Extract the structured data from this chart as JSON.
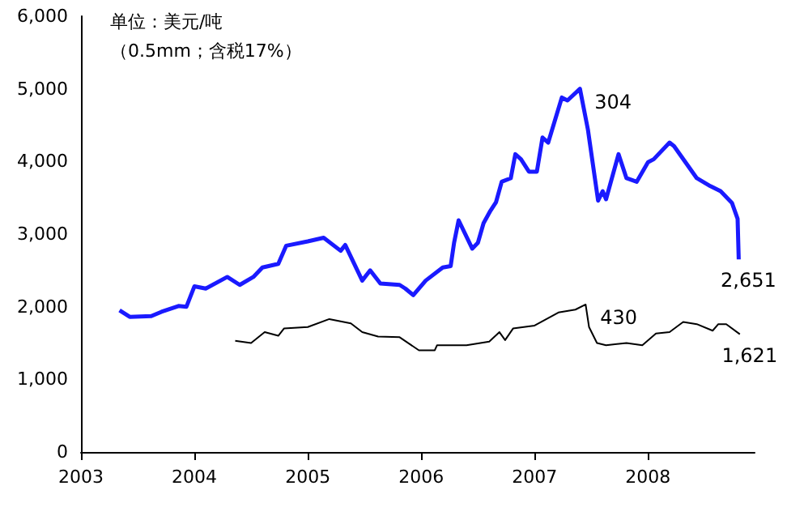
{
  "chart_data": {
    "type": "line",
    "annotations": [
      "单位：美元/吨",
      "（0.5mm；含税17%）"
    ],
    "xlim": [
      2003,
      2008.94
    ],
    "xticks": [
      2003,
      2004,
      2005,
      2006,
      2007,
      2008
    ],
    "ylim": [
      0,
      6000
    ],
    "yticks": [
      0,
      {
        "value": 1000,
        "label": "1,000"
      },
      {
        "value": 2000,
        "label": "2,000"
      },
      {
        "value": 3000,
        "label": "3,000"
      },
      {
        "value": 4000,
        "label": "4,000"
      },
      {
        "value": 5000,
        "label": "5,000"
      },
      {
        "value": 6000,
        "label": "6,000"
      }
    ],
    "grid": false,
    "legend": false,
    "marker": "none",
    "line_style": "solid",
    "series": [
      {
        "name": "304",
        "color": "#1a1aff",
        "x": [
          2003.34,
          2003.43,
          2003.62,
          2003.71,
          2003.86,
          2003.93,
          2004.0,
          2004.1,
          2004.29,
          2004.4,
          2004.52,
          2004.6,
          2004.74,
          2004.81,
          2005.0,
          2005.14,
          2005.29,
          2005.33,
          2005.48,
          2005.55,
          2005.64,
          2005.81,
          2005.86,
          2005.93,
          2006.04,
          2006.19,
          2006.26,
          2006.29,
          2006.33,
          2006.45,
          2006.5,
          2006.55,
          2006.61,
          2006.66,
          2006.71,
          2006.79,
          2006.83,
          2006.88,
          2006.95,
          2007.02,
          2007.07,
          2007.12,
          2007.24,
          2007.29,
          2007.4,
          2007.47,
          2007.56,
          2007.6,
          2007.63,
          2007.74,
          2007.81,
          2007.9,
          2008.0,
          2008.05,
          2008.19,
          2008.23,
          2008.33,
          2008.43,
          2008.55,
          2008.64,
          2008.74,
          2008.79,
          2008.8
        ],
        "values": [
          1950,
          1860,
          1870,
          1930,
          2010,
          2000,
          2280,
          2250,
          2410,
          2300,
          2410,
          2540,
          2590,
          2840,
          2900,
          2950,
          2770,
          2850,
          2360,
          2500,
          2320,
          2300,
          2250,
          2160,
          2360,
          2540,
          2560,
          2880,
          3190,
          2800,
          2880,
          3150,
          3320,
          3440,
          3720,
          3770,
          4100,
          4030,
          3860,
          3860,
          4330,
          4260,
          4880,
          4840,
          5000,
          4440,
          3460,
          3590,
          3480,
          4100,
          3770,
          3720,
          3990,
          4030,
          4260,
          4210,
          3990,
          3770,
          3660,
          3590,
          3430,
          3210,
          2651
        ],
        "value_labels": [
          null,
          null,
          null,
          null,
          null,
          null,
          null,
          null,
          null,
          null,
          null,
          null,
          null,
          null,
          null,
          null,
          null,
          null,
          null,
          null,
          null,
          null,
          null,
          null,
          null,
          null,
          null,
          null,
          null,
          null,
          null,
          null,
          null,
          null,
          null,
          null,
          null,
          null,
          null,
          null,
          null,
          null,
          null,
          null,
          null,
          null,
          null,
          null,
          null,
          null,
          null,
          null,
          null,
          null,
          null,
          null,
          null,
          null,
          null,
          null,
          null,
          null,
          "2,651"
        ]
      },
      {
        "name": "430",
        "color": "#000000",
        "x": [
          2004.36,
          2004.5,
          2004.62,
          2004.74,
          2004.79,
          2005.0,
          2005.19,
          2005.38,
          2005.48,
          2005.62,
          2005.81,
          2005.98,
          2006.12,
          2006.14,
          2006.4,
          2006.6,
          2006.69,
          2006.74,
          2006.81,
          2007.0,
          2007.21,
          2007.36,
          2007.45,
          2007.48,
          2007.55,
          2007.63,
          2007.81,
          2007.95,
          2008.07,
          2008.19,
          2008.31,
          2008.43,
          2008.57,
          2008.62,
          2008.69,
          2008.81
        ],
        "values": [
          1530,
          1500,
          1650,
          1600,
          1700,
          1720,
          1830,
          1770,
          1650,
          1590,
          1580,
          1400,
          1400,
          1470,
          1470,
          1520,
          1650,
          1540,
          1700,
          1740,
          1920,
          1960,
          2030,
          1720,
          1500,
          1470,
          1500,
          1470,
          1630,
          1650,
          1790,
          1760,
          1670,
          1760,
          1760,
          1621
        ],
        "value_labels": [
          null,
          null,
          null,
          null,
          null,
          null,
          null,
          null,
          null,
          null,
          null,
          null,
          null,
          null,
          null,
          null,
          null,
          null,
          null,
          null,
          null,
          null,
          null,
          null,
          null,
          null,
          null,
          null,
          null,
          null,
          null,
          null,
          null,
          null,
          null,
          "1,621"
        ]
      }
    ]
  }
}
